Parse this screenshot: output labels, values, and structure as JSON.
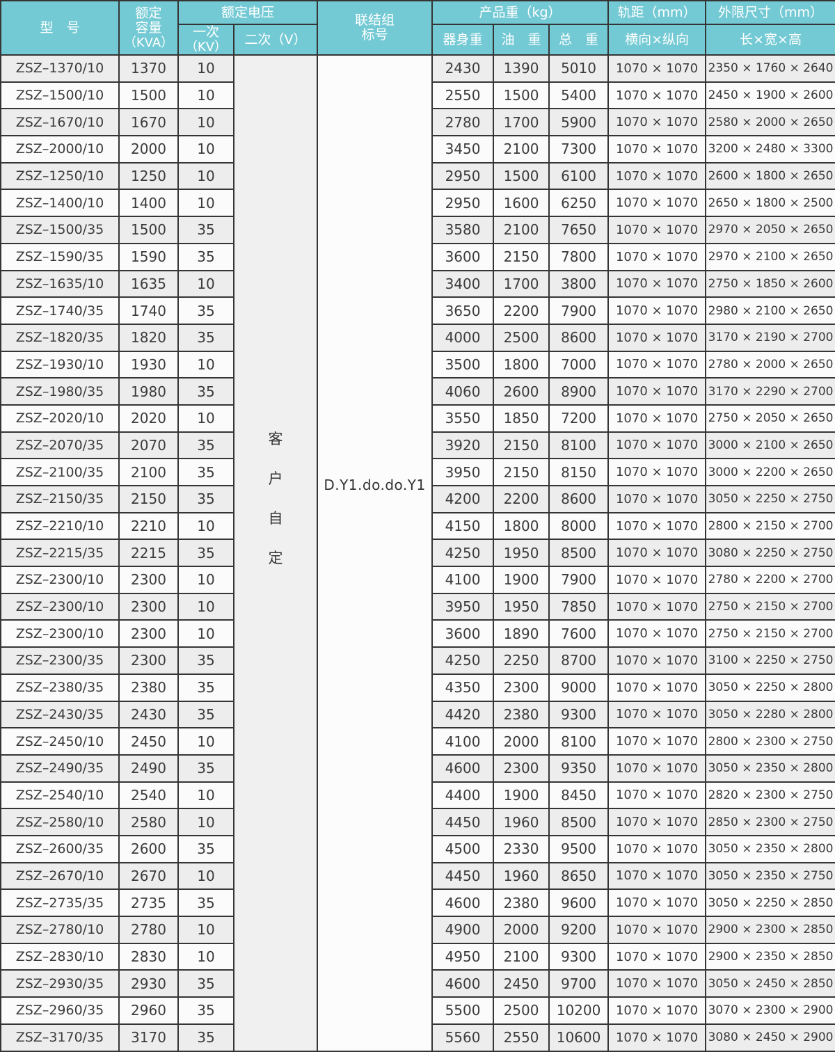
{
  "colors": {
    "header_bg": "#74cad4",
    "header_text": "#ffffff",
    "border": "#353535",
    "row_odd_bg": "#ededed",
    "row_even_bg": "#fbfbfb",
    "data_text": "#3b3b3b"
  },
  "table": {
    "header": {
      "model": "型　号",
      "capacity_line1": "额定",
      "capacity_line2": "容量",
      "capacity_line3": "（KVA）",
      "voltage_group": "额定电压",
      "primary_line1": "一次",
      "primary_line2": "（KV）",
      "secondary": "二次（V）",
      "connection_line1": "联结组",
      "connection_line2": "标号",
      "weight_group": "产品重（kg）",
      "body_weight": "器身重",
      "oil_weight": "油　重",
      "total_weight": "总　重",
      "gauge_group": "轨距（mm）",
      "gauge_sub": "横向×纵向",
      "dims_group": "外限尺寸（mm）",
      "dims_sub": "长×宽×高"
    },
    "merged": {
      "secondary_value": [
        "客",
        "户",
        "自",
        "定"
      ],
      "connection_value": "D.Y1.do.do.Y1"
    },
    "rows": [
      [
        "ZSZ–1370/10",
        "1370",
        "10",
        "2430",
        "1390",
        "5010",
        "1070 × 1070",
        "2350 × 1760 × 2640"
      ],
      [
        "ZSZ–1500/10",
        "1500",
        "10",
        "2550",
        "1500",
        "5400",
        "1070 × 1070",
        "2450 × 1900 × 2600"
      ],
      [
        "ZSZ–1670/10",
        "1670",
        "10",
        "2780",
        "1700",
        "5900",
        "1070 × 1070",
        "2580 × 2000 × 2650"
      ],
      [
        "ZSZ–2000/10",
        "2000",
        "10",
        "3450",
        "2100",
        "7300",
        "1070 × 1070",
        "3200 × 2480 × 3300"
      ],
      [
        "ZSZ–1250/10",
        "1250",
        "10",
        "2950",
        "1500",
        "6100",
        "1070 × 1070",
        "2600 × 1800 × 2650"
      ],
      [
        "ZSZ–1400/10",
        "1400",
        "10",
        "2950",
        "1600",
        "6250",
        "1070 × 1070",
        "2650 × 1800 × 2500"
      ],
      [
        "ZSZ–1500/35",
        "1500",
        "35",
        "3580",
        "2100",
        "7650",
        "1070 × 1070",
        "2970 × 2050 × 2650"
      ],
      [
        "ZSZ–1590/35",
        "1590",
        "35",
        "3600",
        "2150",
        "7800",
        "1070 × 1070",
        "2970 × 2100 × 2650"
      ],
      [
        "ZSZ–1635/10",
        "1635",
        "10",
        "3400",
        "1700",
        "3800",
        "1070 × 1070",
        "2750 × 1850 × 2600"
      ],
      [
        "ZSZ–1740/35",
        "1740",
        "35",
        "3650",
        "2200",
        "7900",
        "1070 × 1070",
        "2980 × 2100 × 2650"
      ],
      [
        "ZSZ–1820/35",
        "1820",
        "35",
        "4000",
        "2500",
        "8600",
        "1070 × 1070",
        "3170 × 2190 × 2700"
      ],
      [
        "ZSZ–1930/10",
        "1930",
        "10",
        "3500",
        "1800",
        "7000",
        "1070 × 1070",
        "2780 × 2000 × 2650"
      ],
      [
        "ZSZ–1980/35",
        "1980",
        "35",
        "4060",
        "2600",
        "8900",
        "1070 × 1070",
        "3170 × 2290 × 2700"
      ],
      [
        "ZSZ–2020/10",
        "2020",
        "10",
        "3550",
        "1850",
        "7200",
        "1070 × 1070",
        "2750 × 2050 × 2650"
      ],
      [
        "ZSZ–2070/35",
        "2070",
        "35",
        "3920",
        "2150",
        "8100",
        "1070 × 1070",
        "3000 × 2100 × 2650"
      ],
      [
        "ZSZ–2100/35",
        "2100",
        "35",
        "3950",
        "2150",
        "8150",
        "1070 × 1070",
        "3000 × 2200 × 2650"
      ],
      [
        "ZSZ–2150/35",
        "2150",
        "35",
        "4200",
        "2200",
        "8600",
        "1070 × 1070",
        "3050 × 2250 × 2750"
      ],
      [
        "ZSZ–2210/10",
        "2210",
        "10",
        "4150",
        "1800",
        "8000",
        "1070 × 1070",
        "2800 × 2150 × 2700"
      ],
      [
        "ZSZ–2215/35",
        "2215",
        "35",
        "4250",
        "1950",
        "8500",
        "1070 × 1070",
        "3080 × 2250 × 2750"
      ],
      [
        "ZSZ–2300/10",
        "2300",
        "10",
        "4100",
        "1900",
        "7900",
        "1070 × 1070",
        "2780 × 2200 × 2700"
      ],
      [
        "ZSZ–2300/10",
        "2300",
        "10",
        "3950",
        "1950",
        "7850",
        "1070 × 1070",
        "2750 × 2150 × 2700"
      ],
      [
        "ZSZ–2300/10",
        "2300",
        "10",
        "3600",
        "1890",
        "7600",
        "1070 × 1070",
        "2750 × 2150 × 2700"
      ],
      [
        "ZSZ–2300/35",
        "2300",
        "35",
        "4250",
        "2250",
        "8700",
        "1070 × 1070",
        "3100 × 2250 × 2750"
      ],
      [
        "ZSZ–2380/35",
        "2380",
        "35",
        "4350",
        "2300",
        "9000",
        "1070 × 1070",
        "3050 × 2250 × 2800"
      ],
      [
        "ZSZ–2430/35",
        "2430",
        "35",
        "4420",
        "2380",
        "9300",
        "1070 × 1070",
        "3050 × 2280 × 2800"
      ],
      [
        "ZSZ–2450/10",
        "2450",
        "10",
        "4100",
        "2000",
        "8100",
        "1070 × 1070",
        "2800 × 2300 × 2750"
      ],
      [
        "ZSZ–2490/35",
        "2490",
        "35",
        "4600",
        "2300",
        "9350",
        "1070 × 1070",
        "3050 × 2350 × 2800"
      ],
      [
        "ZSZ–2540/10",
        "2540",
        "10",
        "4400",
        "1900",
        "8450",
        "1070 × 1070",
        "2820 × 2300 × 2750"
      ],
      [
        "ZSZ–2580/10",
        "2580",
        "10",
        "4450",
        "1960",
        "8500",
        "1070 × 1070",
        "2850 × 2300 × 2750"
      ],
      [
        "ZSZ–2600/35",
        "2600",
        "35",
        "4500",
        "2330",
        "9500",
        "1070 × 1070",
        "3050 × 2350 × 2800"
      ],
      [
        "ZSZ–2670/10",
        "2670",
        "10",
        "4450",
        "1960",
        "8650",
        "1070 × 1070",
        "3050 × 2350 × 2750"
      ],
      [
        "ZSZ–2735/35",
        "2735",
        "35",
        "4600",
        "2380",
        "9600",
        "1070 × 1070",
        "3050 × 2250 × 2850"
      ],
      [
        "ZSZ–2780/10",
        "2780",
        "10",
        "4900",
        "2000",
        "9200",
        "1070 × 1070",
        "2900 × 2300 × 2850"
      ],
      [
        "ZSZ–2830/10",
        "2830",
        "10",
        "4950",
        "2100",
        "9300",
        "1070 × 1070",
        "2900 × 2350 × 2850"
      ],
      [
        "ZSZ–2930/35",
        "2930",
        "35",
        "4600",
        "2450",
        "9700",
        "1070 × 1070",
        "3050 × 2450 × 2850"
      ],
      [
        "ZSZ–2960/35",
        "2960",
        "35",
        "5500",
        "2500",
        "10200",
        "1070 × 1070",
        "3070 × 2300 × 2900"
      ],
      [
        "ZSZ–3170/35",
        "3170",
        "35",
        "5560",
        "2550",
        "10600",
        "1070 × 1070",
        "3080 × 2450 × 2900"
      ]
    ]
  }
}
